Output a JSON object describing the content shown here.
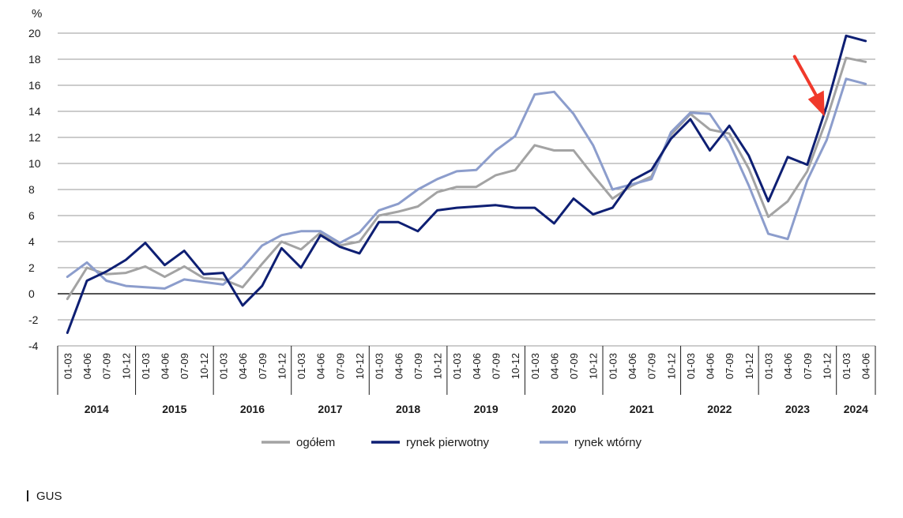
{
  "chart_data": {
    "type": "line",
    "unit_label": "%",
    "ylim": [
      -4,
      20
    ],
    "yticks": [
      "20",
      "18",
      "16",
      "14",
      "12",
      "10",
      "8",
      "6",
      "4",
      "2",
      "0",
      "-2",
      "-4"
    ],
    "quarter_labels": [
      "01-03",
      "04-06",
      "07-09",
      "10-12"
    ],
    "years": [
      "2014",
      "2015",
      "2016",
      "2017",
      "2018",
      "2019",
      "2020",
      "2021",
      "2022",
      "2023",
      "2024"
    ],
    "x": [
      "2014 01-03",
      "2014 04-06",
      "2014 07-09",
      "2014 10-12",
      "2015 01-03",
      "2015 04-06",
      "2015 07-09",
      "2015 10-12",
      "2016 01-03",
      "2016 04-06",
      "2016 07-09",
      "2016 10-12",
      "2017 01-03",
      "2017 04-06",
      "2017 07-09",
      "2017 10-12",
      "2018 01-03",
      "2018 04-06",
      "2018 07-09",
      "2018 10-12",
      "2019 01-03",
      "2019 04-06",
      "2019 07-09",
      "2019 10-12",
      "2020 01-03",
      "2020 04-06",
      "2020 07-09",
      "2020 10-12",
      "2021 01-03",
      "2021 04-06",
      "2021 07-09",
      "2021 10-12",
      "2022 01-03",
      "2022 04-06",
      "2022 07-09",
      "2022 10-12",
      "2023 01-03",
      "2023 04-06",
      "2023 07-09",
      "2023 10-12",
      "2024 01-03",
      "2024 04-06"
    ],
    "series": [
      {
        "name": "ogółem",
        "color": "#a3a3a3",
        "values": [
          -0.4,
          2.0,
          1.5,
          1.6,
          2.1,
          1.3,
          2.1,
          1.2,
          1.1,
          0.5,
          2.3,
          4.0,
          3.4,
          4.7,
          3.7,
          4.0,
          6.0,
          6.3,
          6.7,
          7.8,
          8.2,
          8.2,
          9.1,
          9.5,
          11.4,
          11.0,
          11.0,
          9.1,
          7.3,
          8.3,
          9.0,
          12.2,
          13.8,
          12.6,
          12.3,
          9.6,
          5.9,
          7.1,
          9.4,
          13.4,
          18.1,
          17.8
        ]
      },
      {
        "name": "rynek pierwotny",
        "color": "#0e1f73",
        "values": [
          -3.0,
          1.0,
          1.7,
          2.6,
          3.9,
          2.2,
          3.3,
          1.5,
          1.6,
          -0.9,
          0.6,
          3.5,
          2.0,
          4.5,
          3.6,
          3.1,
          5.5,
          5.5,
          4.8,
          6.4,
          6.6,
          6.7,
          6.8,
          6.6,
          6.6,
          5.4,
          7.3,
          6.1,
          6.6,
          8.7,
          9.5,
          11.9,
          13.4,
          11.0,
          12.9,
          10.6,
          7.1,
          10.5,
          9.9,
          14.4,
          19.8,
          19.4
        ]
      },
      {
        "name": "rynek wtórny",
        "color": "#8c9dcc",
        "values": [
          1.3,
          2.4,
          1.0,
          0.6,
          0.5,
          0.4,
          1.1,
          0.9,
          0.7,
          2.0,
          3.7,
          4.5,
          4.8,
          4.8,
          3.9,
          4.7,
          6.4,
          6.9,
          8.0,
          8.8,
          9.4,
          9.5,
          11.0,
          12.1,
          15.3,
          15.5,
          13.8,
          11.4,
          8.0,
          8.4,
          8.8,
          12.4,
          13.9,
          13.8,
          11.6,
          8.3,
          4.6,
          4.2,
          8.7,
          11.8,
          16.5,
          16.1
        ]
      }
    ],
    "legend_position": "bottom",
    "grid": true,
    "annotation": {
      "type": "arrow",
      "color": "#f0392b"
    }
  },
  "source": "GUS"
}
